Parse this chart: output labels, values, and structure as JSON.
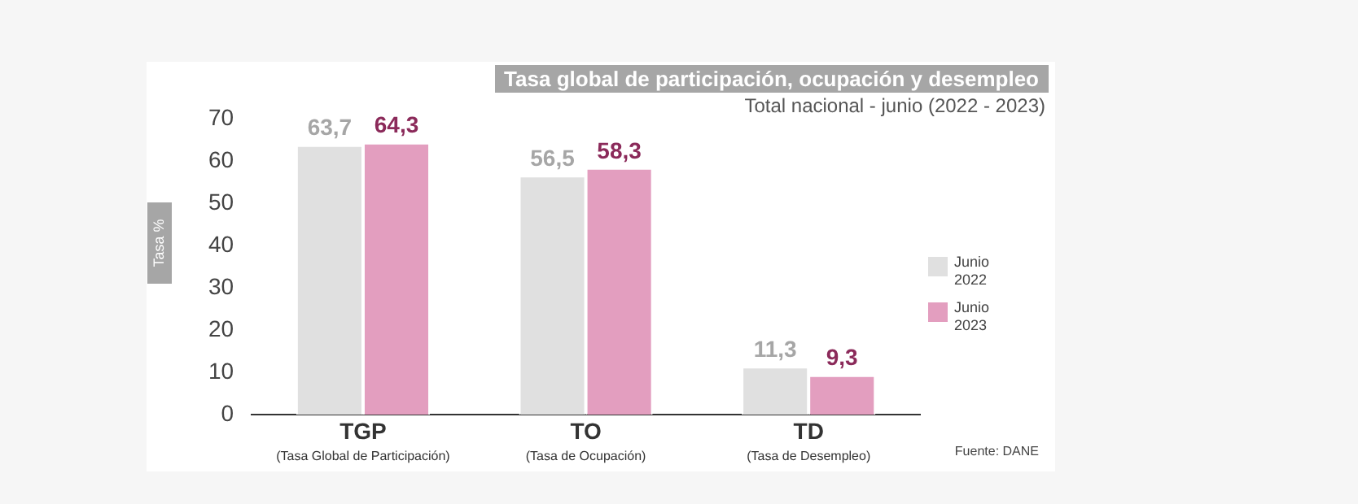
{
  "chart_data": {
    "type": "bar",
    "title": "Tasa global de participación, ocupación y desempleo",
    "subtitle": "Total nacional - junio (2022 - 2023)",
    "ylabel": "Tasa %",
    "categories": [
      "TGP\n(Tasa Global de Participación)",
      "TO\n(Tasa de Ocupación)",
      "TD\n(Tasa de Desempleo)"
    ],
    "series": [
      {
        "name": "Junio 2022",
        "color": "#e0e0e0",
        "values": [
          63.7,
          56.5,
          11.3
        ],
        "value_labels": [
          "63,7",
          "56,5",
          "11,3"
        ]
      },
      {
        "name": "Junio 2023",
        "color": "#e39ebf",
        "values": [
          64.3,
          58.3,
          9.3
        ],
        "value_labels": [
          "64,3",
          "58,3",
          "9,3"
        ]
      }
    ],
    "ylim": [
      0,
      70
    ],
    "yticks": [
      0,
      10,
      20,
      30,
      40,
      50,
      60,
      70
    ],
    "grid": false,
    "legend": "right",
    "annotations": [
      "Fuente: DANE"
    ]
  }
}
